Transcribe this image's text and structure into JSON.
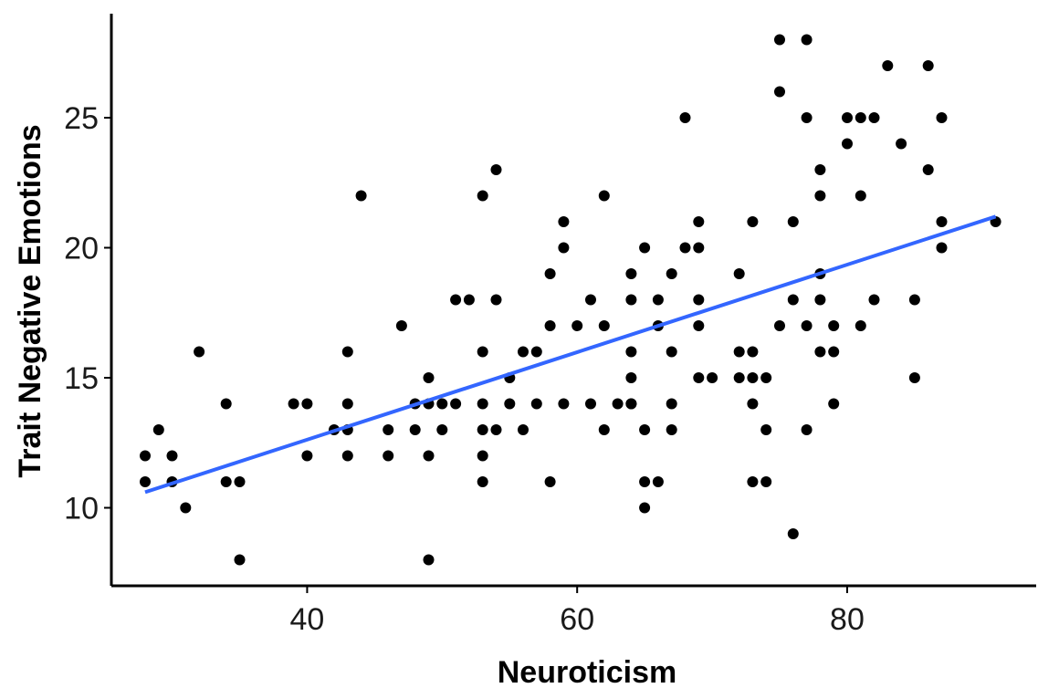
{
  "chart_data": {
    "type": "scatter",
    "xlabel": "Neuroticism",
    "ylabel": "Trait Negative Emotions",
    "xlim": [
      25.5,
      94
    ],
    "ylim": [
      7,
      29
    ],
    "x_ticks": [
      40,
      60,
      80
    ],
    "y_ticks": [
      10,
      15,
      20,
      25
    ],
    "grid": false,
    "legend": "none",
    "point_color": "#000000",
    "line_color": "#3366FF",
    "trend_line": {
      "x": [
        28,
        91
      ],
      "y": [
        10.6,
        21.2
      ]
    },
    "points": [
      [
        28,
        12
      ],
      [
        28,
        11
      ],
      [
        29,
        13
      ],
      [
        30,
        12
      ],
      [
        30,
        11
      ],
      [
        31,
        10
      ],
      [
        32,
        16
      ],
      [
        34,
        14
      ],
      [
        34,
        11
      ],
      [
        35,
        11
      ],
      [
        35,
        8
      ],
      [
        39,
        14
      ],
      [
        40,
        14
      ],
      [
        40,
        12
      ],
      [
        42,
        13
      ],
      [
        43,
        16
      ],
      [
        43,
        14
      ],
      [
        43,
        13
      ],
      [
        43,
        12
      ],
      [
        44,
        22
      ],
      [
        46,
        13
      ],
      [
        46,
        12
      ],
      [
        47,
        17
      ],
      [
        48,
        14
      ],
      [
        48,
        13
      ],
      [
        49,
        15
      ],
      [
        49,
        14
      ],
      [
        49,
        12
      ],
      [
        49,
        8
      ],
      [
        50,
        14
      ],
      [
        50,
        13
      ],
      [
        51,
        14
      ],
      [
        51,
        18
      ],
      [
        52,
        18
      ],
      [
        53,
        22
      ],
      [
        53,
        16
      ],
      [
        53,
        14
      ],
      [
        53,
        13
      ],
      [
        53,
        12
      ],
      [
        53,
        11
      ],
      [
        54,
        23
      ],
      [
        54,
        18
      ],
      [
        54,
        13
      ],
      [
        55,
        15
      ],
      [
        55,
        14
      ],
      [
        56,
        16
      ],
      [
        56,
        13
      ],
      [
        57,
        16
      ],
      [
        57,
        14
      ],
      [
        58,
        19
      ],
      [
        58,
        17
      ],
      [
        58,
        11
      ],
      [
        59,
        21
      ],
      [
        59,
        20
      ],
      [
        59,
        14
      ],
      [
        60,
        17
      ],
      [
        61,
        18
      ],
      [
        61,
        14
      ],
      [
        62,
        22
      ],
      [
        62,
        17
      ],
      [
        62,
        13
      ],
      [
        63,
        14
      ],
      [
        64,
        14
      ],
      [
        64,
        19
      ],
      [
        64,
        18
      ],
      [
        64,
        16
      ],
      [
        64,
        15
      ],
      [
        64,
        14
      ],
      [
        65,
        20
      ],
      [
        65,
        13
      ],
      [
        65,
        11
      ],
      [
        65,
        10
      ],
      [
        66,
        18
      ],
      [
        66,
        17
      ],
      [
        66,
        11
      ],
      [
        67,
        19
      ],
      [
        67,
        16
      ],
      [
        67,
        14
      ],
      [
        67,
        13
      ],
      [
        68,
        25
      ],
      [
        68,
        20
      ],
      [
        69,
        21
      ],
      [
        69,
        20
      ],
      [
        69,
        18
      ],
      [
        69,
        17
      ],
      [
        69,
        15
      ],
      [
        70,
        15
      ],
      [
        72,
        19
      ],
      [
        72,
        16
      ],
      [
        72,
        15
      ],
      [
        73,
        21
      ],
      [
        73,
        16
      ],
      [
        73,
        15
      ],
      [
        73,
        14
      ],
      [
        73,
        11
      ],
      [
        74,
        15
      ],
      [
        74,
        13
      ],
      [
        74,
        11
      ],
      [
        75,
        28
      ],
      [
        75,
        26
      ],
      [
        75,
        17
      ],
      [
        76,
        21
      ],
      [
        76,
        18
      ],
      [
        76,
        9
      ],
      [
        77,
        28
      ],
      [
        77,
        25
      ],
      [
        77,
        17
      ],
      [
        77,
        13
      ],
      [
        78,
        23
      ],
      [
        78,
        22
      ],
      [
        78,
        19
      ],
      [
        78,
        18
      ],
      [
        78,
        16
      ],
      [
        79,
        17
      ],
      [
        79,
        16
      ],
      [
        79,
        14
      ],
      [
        80,
        25
      ],
      [
        80,
        24
      ],
      [
        81,
        25
      ],
      [
        81,
        22
      ],
      [
        81,
        17
      ],
      [
        82,
        25
      ],
      [
        82,
        18
      ],
      [
        83,
        27
      ],
      [
        84,
        24
      ],
      [
        85,
        18
      ],
      [
        85,
        15
      ],
      [
        86,
        27
      ],
      [
        86,
        23
      ],
      [
        87,
        25
      ],
      [
        87,
        21
      ],
      [
        87,
        20
      ],
      [
        91,
        21
      ]
    ]
  }
}
